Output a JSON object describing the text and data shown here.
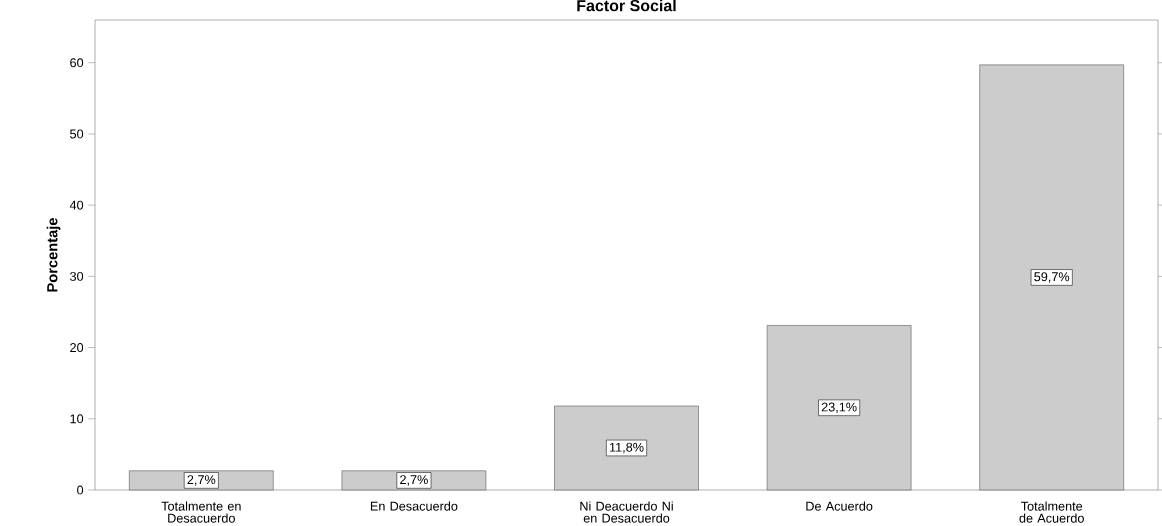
{
  "chart_data": {
    "type": "bar",
    "title": "Factor Social",
    "ylabel": "Porcentaje",
    "categories": [
      "Totalmente en Desacuerdo",
      "En Desacuerdo",
      "Ni Deacuerdo Ni en Desacuerdo",
      "De Acuerdo",
      "Totalmente de Acuerdo"
    ],
    "values": [
      2.7,
      2.7,
      11.8,
      23.1,
      59.7
    ],
    "value_labels": [
      "2,7%",
      "2,7%",
      "11,8%",
      "23,1%",
      "59,7%"
    ],
    "color": "#cccccc",
    "ylim": [
      0,
      66
    ],
    "yticks": [
      0,
      10,
      20,
      30,
      40,
      50,
      60
    ],
    "grid": false
  }
}
